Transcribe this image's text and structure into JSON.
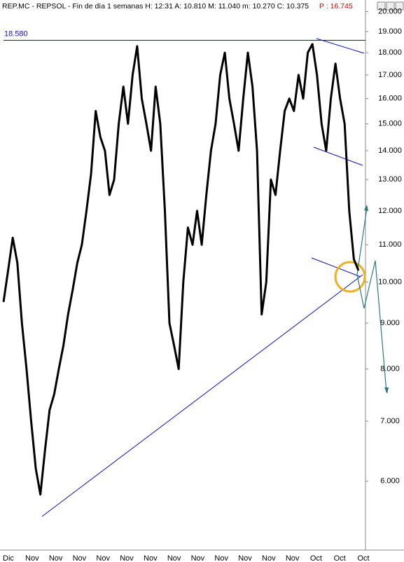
{
  "chart_data": {
    "type": "line",
    "title": "REP.MC - REPSOL - Fin de día 1 semanas  H: 12:31  A: 10.810  M: 11.040  m: 10.270  C: 10.375",
    "subtitle": "P : 16.745",
    "x_labels": [
      "Dic",
      "Nov",
      "Nov",
      "Nov",
      "Nov",
      "Nov",
      "Nov",
      "Nov",
      "Nov",
      "Nov",
      "Nov",
      "Nov",
      "Nov",
      "Oct",
      "Oct",
      "Oct"
    ],
    "values": [
      9.5,
      10.3,
      11.2,
      10.5,
      9,
      8,
      7,
      6.2,
      5.8,
      6.5,
      7.2,
      7.5,
      8,
      8.5,
      9.2,
      9.8,
      10.5,
      11,
      12,
      13.2,
      15.5,
      14.5,
      14,
      12.5,
      13,
      15,
      16.5,
      15,
      17,
      18.3,
      16,
      15,
      14,
      16.5,
      15,
      12,
      9,
      8.5,
      8,
      10,
      11.5,
      11,
      12,
      11,
      12.5,
      14,
      15,
      17,
      18,
      16,
      15,
      14,
      16,
      18,
      16.5,
      14,
      9.2,
      10,
      13,
      12.5,
      14,
      15.5,
      16,
      15.5,
      17,
      16,
      18,
      18.4,
      17,
      15,
      14,
      16,
      17.5,
      16,
      15,
      12,
      10.6,
      10.3
    ],
    "color": "#000000",
    "log_scale": true,
    "resistance": {
      "value": 18.58,
      "label": "18.580"
    },
    "ylim": [
      5.03,
      20.6
    ],
    "yticks": [
      {
        "value": 20,
        "label": "20.000"
      },
      {
        "value": 19,
        "label": "19.000"
      },
      {
        "value": 18,
        "label": "18.000"
      },
      {
        "value": 17,
        "label": "17.000"
      },
      {
        "value": 16,
        "label": "16.000"
      },
      {
        "value": 15,
        "label": "15.000"
      },
      {
        "value": 14,
        "label": "14.000"
      },
      {
        "value": 13,
        "label": "13.000"
      },
      {
        "value": 12,
        "label": "12.000"
      },
      {
        "value": 11,
        "label": "11.000"
      },
      {
        "value": 10,
        "label": "10.000"
      },
      {
        "value": 9,
        "label": "9.000"
      },
      {
        "value": 8,
        "label": "8.000"
      },
      {
        "value": 7,
        "label": "7.000"
      },
      {
        "value": 6,
        "label": "6.000"
      }
    ]
  }
}
